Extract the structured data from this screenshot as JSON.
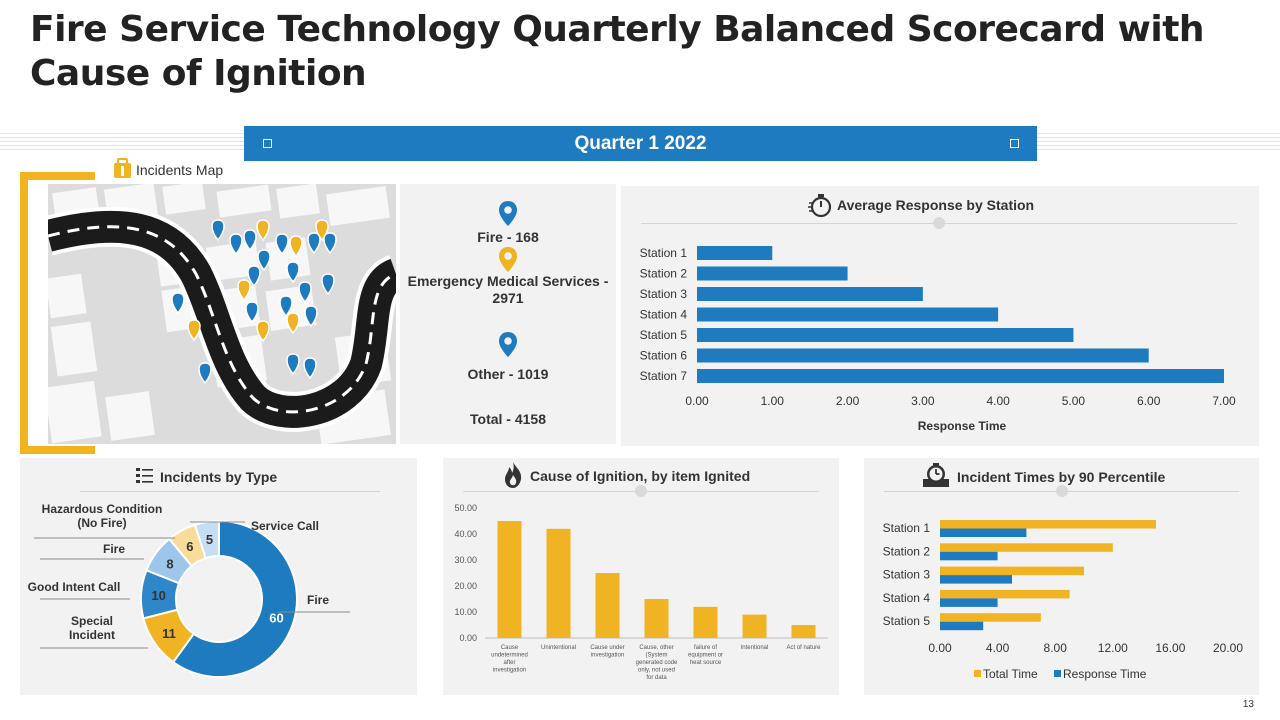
{
  "title": "Fire Service Technology Quarterly Balanced Scorecard with Cause of Ignition",
  "quarter": "Quarter 1 2022",
  "page_number": "13",
  "colors": {
    "blue": "#1f7bbf",
    "orange": "#f0b323",
    "light_blue": "#9dc7ea",
    "cream": "#f8dc9a",
    "pale_blue": "#c6def2"
  },
  "incidents_map": {
    "label": "Incidents Map",
    "stats": {
      "fire": "Fire - 168",
      "ems": "Emergency Medical Services - 2971",
      "other": "Other - 1019",
      "total": "Total - 4158"
    }
  },
  "chart_data": [
    {
      "id": "avg_response",
      "type": "bar",
      "orientation": "horizontal",
      "title": "Average Response by Station",
      "categories": [
        "Station 1",
        "Station 2",
        "Station 3",
        "Station 4",
        "Station 5",
        "Station 6",
        "Station 7"
      ],
      "values": [
        1,
        2,
        3,
        4,
        5,
        6,
        7
      ],
      "xlim": [
        0,
        7
      ],
      "ticks": [
        "0.00",
        "1.00",
        "2.00",
        "3.00",
        "4.00",
        "5.00",
        "6.00",
        "7.00"
      ],
      "xlabel": "Response Time"
    },
    {
      "id": "incidents_by_type",
      "type": "pie",
      "donut": true,
      "title": "Incidents by Type",
      "slices": [
        {
          "label": "Fire",
          "value": 60,
          "color": "#1f7bbf"
        },
        {
          "label": "Special Incident",
          "value": 11,
          "color": "#f0b323"
        },
        {
          "label": "Good  Intent Call",
          "value": 10,
          "color": "#2f86c8"
        },
        {
          "label": "Fire",
          "value": 8,
          "color": "#9dc7ea"
        },
        {
          "label": "Hazardous Condition (No Fire)",
          "value": 6,
          "color": "#f8dc9a"
        },
        {
          "label": "Service Call",
          "value": 5,
          "color": "#c6def2"
        }
      ]
    },
    {
      "id": "cause_of_ignition",
      "type": "bar",
      "title": "Cause of Ignition, by item Ignited",
      "categories": [
        "Cause undetermined after investigation",
        "Unintentional",
        "Cause under investigation",
        "Cause, other (System generated code only, not used for data",
        "failure of equipment or heat source",
        "Intentional",
        "Act of nature"
      ],
      "values": [
        45,
        42,
        25,
        15,
        12,
        9,
        5
      ],
      "ylim": [
        0,
        50
      ],
      "ticks": [
        "0.00",
        "10.00",
        "20.00",
        "30.00",
        "40.00",
        "50.00"
      ]
    },
    {
      "id": "incident_times",
      "type": "bar",
      "orientation": "horizontal",
      "title": "Incident Times by 90 Percentile",
      "categories": [
        "Station 1",
        "Station 2",
        "Station 3",
        "Station 4",
        "Station 5"
      ],
      "series": [
        {
          "name": "Total Time",
          "values": [
            15,
            12,
            10,
            9,
            7
          ],
          "color": "#f0b323"
        },
        {
          "name": "Response Time",
          "values": [
            6,
            4,
            5,
            4,
            3
          ],
          "color": "#1f7bbf"
        }
      ],
      "xlim": [
        0,
        20
      ],
      "ticks": [
        "0.00",
        "4.00",
        "8.00",
        "12.00",
        "16.00",
        "20.00"
      ]
    }
  ]
}
